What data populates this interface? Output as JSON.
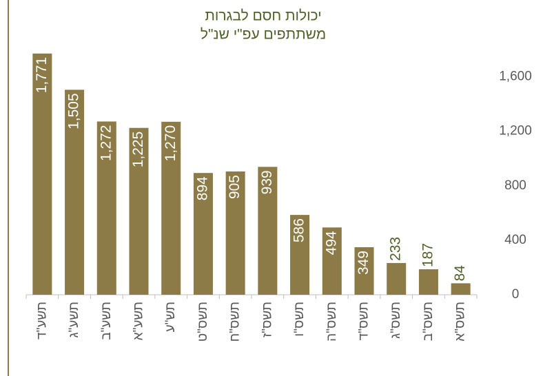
{
  "chart_data": {
    "type": "bar",
    "title": [
      "יכולות חסם לבגרות",
      "משתתפים עפ\"י שנ\"ל"
    ],
    "categories": [
      "תשע\"ד",
      "תשע\"ג",
      "תשע\"ב",
      "תשע\"א",
      "תש\"ע",
      "תשס\"ט",
      "תשס\"ח",
      "תשס\"ז",
      "תשס\"ו",
      "תשס\"ה",
      "תשס\"ד",
      "תשס\"ג",
      "תשס\"ב",
      "תשס\"א"
    ],
    "values": [
      1771,
      1505,
      1272,
      1225,
      1270,
      894,
      905,
      939,
      586,
      494,
      349,
      233,
      187,
      84
    ],
    "value_labels": [
      "1,771",
      "1,505",
      "1,272",
      "1,225",
      "1,270",
      "894",
      "905",
      "939",
      "586",
      "494",
      "349",
      "233",
      "187",
      "84"
    ],
    "color": "#8c7b47",
    "ylim": [
      0,
      1800
    ],
    "yticks": [
      0,
      400,
      800,
      {
        "value": 1200,
        "label": "1,200"
      },
      {
        "value": 1600,
        "label": "1,600"
      }
    ],
    "grid": false
  }
}
